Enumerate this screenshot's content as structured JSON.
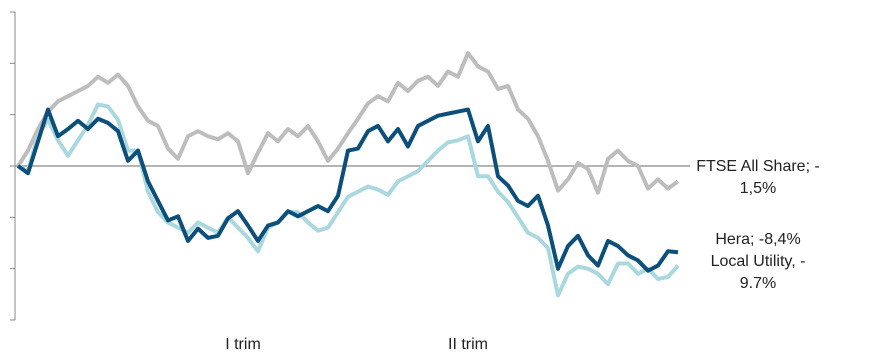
{
  "chart_data": {
    "type": "line",
    "x": [
      0,
      1,
      2,
      3,
      4,
      5,
      6,
      7,
      8,
      9,
      10,
      11,
      12,
      13,
      14,
      15,
      16,
      17,
      18,
      19,
      20,
      21,
      22,
      23,
      24,
      25,
      26,
      27,
      28,
      29,
      30,
      31,
      32,
      33,
      34,
      35,
      36,
      37,
      38,
      39,
      40,
      41,
      42,
      43,
      44,
      45,
      46,
      47,
      48,
      49,
      50,
      51,
      52,
      53,
      54,
      55,
      56,
      57,
      58,
      59,
      60,
      61,
      62,
      63,
      64,
      65,
      66
    ],
    "xlim": [
      0,
      66
    ],
    "xticks": [
      {
        "value": 22.5,
        "label": "I trim"
      },
      {
        "value": 45,
        "label": "II trim"
      }
    ],
    "ylim": [
      -15,
      15
    ],
    "yticks": [
      -15,
      -10,
      -5,
      0,
      5,
      10,
      15
    ],
    "zero_line": true,
    "series": [
      {
        "label": [
          "FTSE All Share; -",
          "1,5%"
        ],
        "color": "#bdbdbd",
        "values": [
          0,
          1.5,
          3.6,
          5.3,
          6.3,
          6.8,
          7.3,
          7.8,
          8.7,
          8.1,
          8.9,
          7.8,
          5.8,
          4.4,
          3.9,
          1.7,
          0.7,
          2.9,
          3.4,
          2.9,
          2.6,
          3.2,
          2.4,
          -0.7,
          1.3,
          3.2,
          2.4,
          3.6,
          2.9,
          3.9,
          2.4,
          0.5,
          1.7,
          3.2,
          4.6,
          6.1,
          6.8,
          6.3,
          8.1,
          7.3,
          8.3,
          8.7,
          7.8,
          9.2,
          8.7,
          11.0,
          9.7,
          9.2,
          7.5,
          7.8,
          5.5,
          4.6,
          2.9,
          0.5,
          -2.4,
          -1.3,
          0.3,
          -0.3,
          -2.6,
          0.7,
          1.5,
          0.5,
          0,
          -2.2,
          -1.3,
          -2.2,
          -1.5
        ]
      },
      {
        "label": [
          "Hera; -8,4%"
        ],
        "color": "#0b4f7a",
        "values": [
          0,
          -0.7,
          2.4,
          5.5,
          2.9,
          3.6,
          4.4,
          3.6,
          4.6,
          4.2,
          3.4,
          0.5,
          1.5,
          -1.5,
          -3.4,
          -5.3,
          -4.9,
          -7.3,
          -6.1,
          -7.0,
          -6.8,
          -5.1,
          -4.4,
          -5.8,
          -7.3,
          -5.8,
          -5.5,
          -4.4,
          -4.9,
          -4.4,
          -3.9,
          -4.4,
          -2.9,
          1.5,
          1.7,
          3.4,
          3.9,
          2.4,
          3.6,
          1.9,
          3.9,
          4.4,
          4.9,
          5.1,
          5.3,
          5.5,
          2.4,
          3.9,
          -1.0,
          -1.9,
          -3.4,
          -3.9,
          -2.9,
          -5.8,
          -10.0,
          -7.8,
          -6.8,
          -8.7,
          -9.7,
          -7.3,
          -7.8,
          -8.7,
          -9.2,
          -10.2,
          -9.7,
          -8.3,
          -8.4
        ]
      },
      {
        "label": [
          "Local Utility, -",
          "9.7%"
        ],
        "color": "#a9d8df",
        "values": [
          0,
          -0.5,
          3.0,
          4.5,
          2.5,
          1.0,
          2.5,
          4.0,
          6.0,
          5.8,
          4.5,
          1.5,
          1.5,
          -2.5,
          -4.5,
          -5.5,
          -6.0,
          -6.5,
          -5.5,
          -6.0,
          -6.5,
          -5.0,
          -6.0,
          -7.0,
          -8.3,
          -6.0,
          -5.5,
          -4.5,
          -4.5,
          -5.5,
          -6.3,
          -6.0,
          -4.5,
          -3.0,
          -2.5,
          -2.0,
          -2.3,
          -2.8,
          -1.5,
          -1.0,
          -0.5,
          0.5,
          1.5,
          2.3,
          2.5,
          2.9,
          -1.0,
          -1.0,
          -2.5,
          -3.5,
          -5.0,
          -6.5,
          -7.0,
          -8.0,
          -12.6,
          -10.5,
          -9.8,
          -10.0,
          -10.5,
          -11.5,
          -9.5,
          -9.5,
          -10.5,
          -10.0,
          -11.0,
          -10.8,
          -9.7
        ]
      }
    ]
  }
}
